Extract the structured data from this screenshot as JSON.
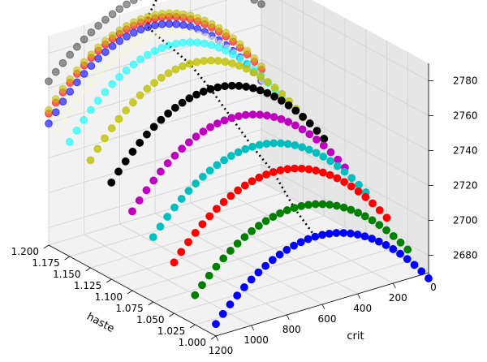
{
  "chart_data": {
    "type": "scatter",
    "projection": "3d",
    "title": "",
    "xlabel": "crit",
    "ylabel": "haste",
    "zlabel": "",
    "xlim": [
      0,
      1200
    ],
    "ylim": [
      1.0,
      1.2
    ],
    "zlim": [
      2670,
      2790
    ],
    "x_ticks": [
      0,
      200,
      400,
      600,
      800,
      1000,
      1200
    ],
    "y_ticks": [
      "1.000",
      "1.025",
      "1.050",
      "1.075",
      "1.100",
      "1.125",
      "1.150",
      "1.175",
      "1.200"
    ],
    "z_ticks": [
      2680,
      2700,
      2720,
      2740,
      2760,
      2780
    ],
    "grid": true,
    "series": [
      {
        "color": "#0000ff",
        "haste": 1.0,
        "z_peak": 2710,
        "peak_crit": 640,
        "drop": 38,
        "alpha": 1.0
      },
      {
        "color": "#008000",
        "haste": 1.025,
        "z_peak": 2720,
        "peak_crit": 640,
        "drop": 38,
        "alpha": 1.0
      },
      {
        "color": "#ff0000",
        "haste": 1.05,
        "z_peak": 2734,
        "peak_crit": 640,
        "drop": 40,
        "alpha": 1.0
      },
      {
        "color": "#00bfbf",
        "haste": 1.075,
        "z_peak": 2742,
        "peak_crit": 640,
        "drop": 40,
        "alpha": 1.0
      },
      {
        "color": "#bf00bf",
        "haste": 1.1,
        "z_peak": 2752,
        "peak_crit": 640,
        "drop": 42,
        "alpha": 1.0
      },
      {
        "color": "#000000",
        "haste": 1.125,
        "z_peak": 2762,
        "peak_crit": 640,
        "drop": 42,
        "alpha": 1.0
      },
      {
        "color": "#bfbf00",
        "haste": 1.15,
        "z_peak": 2770,
        "peak_crit": 640,
        "drop": 44,
        "alpha": 0.8
      },
      {
        "color": "#00ffff",
        "haste": 1.175,
        "z_peak": 2774,
        "peak_crit": 640,
        "drop": 44,
        "alpha": 0.6
      },
      {
        "color": "#f5f5dc",
        "haste": 1.19,
        "z_peak": 2776,
        "peak_crit": 640,
        "drop": 44,
        "alpha": 0.6
      },
      {
        "color": "#0000ff",
        "haste": 1.2,
        "z_peak": 2778,
        "peak_crit": 640,
        "drop": 44,
        "alpha": 0.6
      },
      {
        "color": "#ff0000",
        "haste": 1.2,
        "z_peak": 2782,
        "peak_crit": 640,
        "drop": 42,
        "alpha": 0.6
      },
      {
        "color": "#bfbf00",
        "haste": 1.2,
        "z_peak": 2784,
        "peak_crit": 640,
        "drop": 42,
        "alpha": 0.6
      },
      {
        "color": "#000000",
        "haste": 1.2,
        "z_peak": 2798,
        "peak_crit": 560,
        "drop": 30,
        "alpha": 0.4
      }
    ],
    "optimum_line": {
      "style": "dotted",
      "color": "#000000"
    }
  }
}
